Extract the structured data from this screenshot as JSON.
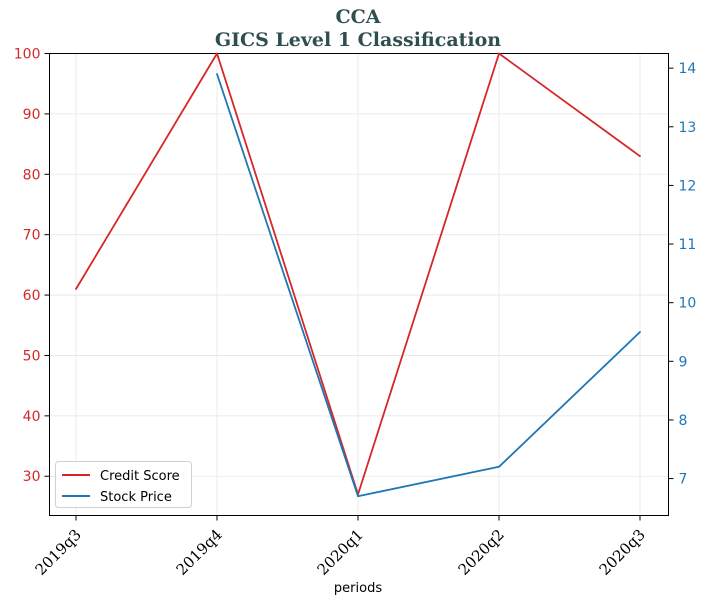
{
  "chart_data": {
    "type": "line",
    "title": "CCA",
    "subtitle": "GICS Level 1 Classification",
    "xlabel": "periods",
    "categories": [
      "2019q3",
      "2019q4",
      "2020q1",
      "2020q2",
      "2020q3"
    ],
    "series": [
      {
        "name": "Credit Score",
        "axis": "left",
        "color": "#d62728",
        "values": [
          61,
          100,
          27,
          100,
          83
        ]
      },
      {
        "name": "Stock Price",
        "axis": "right",
        "color": "#1f77b4",
        "values": [
          null,
          13.9,
          6.7,
          7.2,
          9.5
        ]
      }
    ],
    "y_left": {
      "ylim": [
        23.5,
        100
      ],
      "ticks": [
        30,
        40,
        50,
        60,
        70,
        80,
        90,
        100
      ],
      "color": "#d62728"
    },
    "y_right": {
      "ylim": [
        6.37,
        14.25
      ],
      "ticks": [
        7,
        8,
        9,
        10,
        11,
        12,
        13,
        14
      ],
      "color": "#1f77b4"
    },
    "grid": true,
    "legend": "lower-left",
    "title_color": "#2f4f4f"
  }
}
